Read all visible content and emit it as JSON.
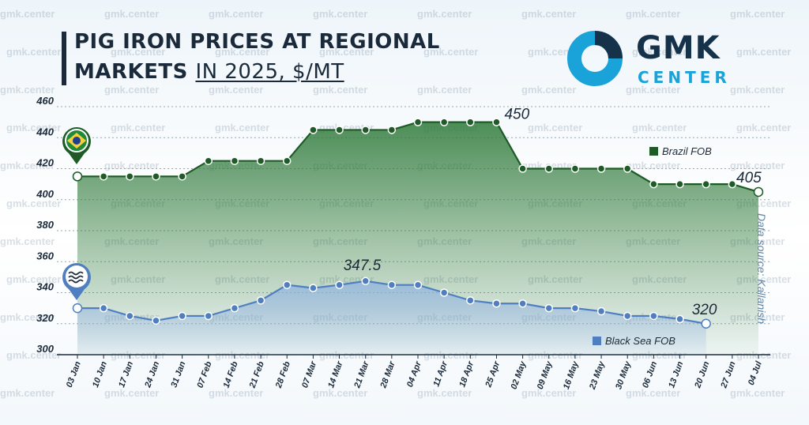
{
  "header": {
    "title_line1": "PIG IRON PRICES AT REGIONAL",
    "title_line2_bold": "MARKETS",
    "title_line2_light": "IN 2025, $/MT"
  },
  "logo": {
    "name": "GMK",
    "subtitle": "CENTER"
  },
  "watermark_text": "gmk.center",
  "source_note": "Data source: Kallanish",
  "colors": {
    "brazil_line": "#1e5b26",
    "brazil_fill": "#2f7a3a",
    "blacksea_line": "#4f7fc0",
    "blacksea_fill": "#8fb2e0",
    "text_dark": "#1b2a3a",
    "logo_blue": "#1aa3d9",
    "logo_dark": "#16324a"
  },
  "icons": {
    "brazil": "brazil-flag-pin-icon",
    "blacksea": "sea-waves-pin-icon"
  },
  "chart_data": {
    "type": "area",
    "x": [
      "03 Jan",
      "10 Jan",
      "17 Jan",
      "24 Jan",
      "31 Jan",
      "07 Feb",
      "14 Feb",
      "21 Feb",
      "28 Feb",
      "07 Mar",
      "14 Mar",
      "21 Mar",
      "28 Mar",
      "04 Apr",
      "11 Apr",
      "18 Apr",
      "25 Apr",
      "02 May",
      "09 May",
      "16 May",
      "23 May",
      "30 May",
      "06 Jun",
      "13 Jun",
      "20 Jun",
      "27 Jun",
      "04 Jul"
    ],
    "y_ticks": [
      300,
      320,
      340,
      360,
      380,
      400,
      420,
      440,
      460
    ],
    "ylim": [
      300,
      460
    ],
    "grid": true,
    "series": [
      {
        "name": "Brazil FOB",
        "values": [
          415,
          415,
          415,
          415,
          415,
          425,
          425,
          425,
          425,
          445,
          445,
          445,
          445,
          450,
          450,
          450,
          450,
          420,
          420,
          420,
          420,
          420,
          410,
          410,
          410,
          410,
          405
        ],
        "labels": {
          "peak": "450",
          "last": "405"
        }
      },
      {
        "name": "Black Sea FOB",
        "values": [
          330,
          330,
          325,
          322,
          325,
          325,
          330,
          335,
          345,
          343,
          345,
          347.5,
          345,
          345,
          340,
          335,
          333,
          333,
          330,
          330,
          328,
          325,
          325,
          323,
          320,
          null,
          null
        ],
        "labels": {
          "peak": "347.5",
          "last": "320"
        }
      }
    ]
  }
}
